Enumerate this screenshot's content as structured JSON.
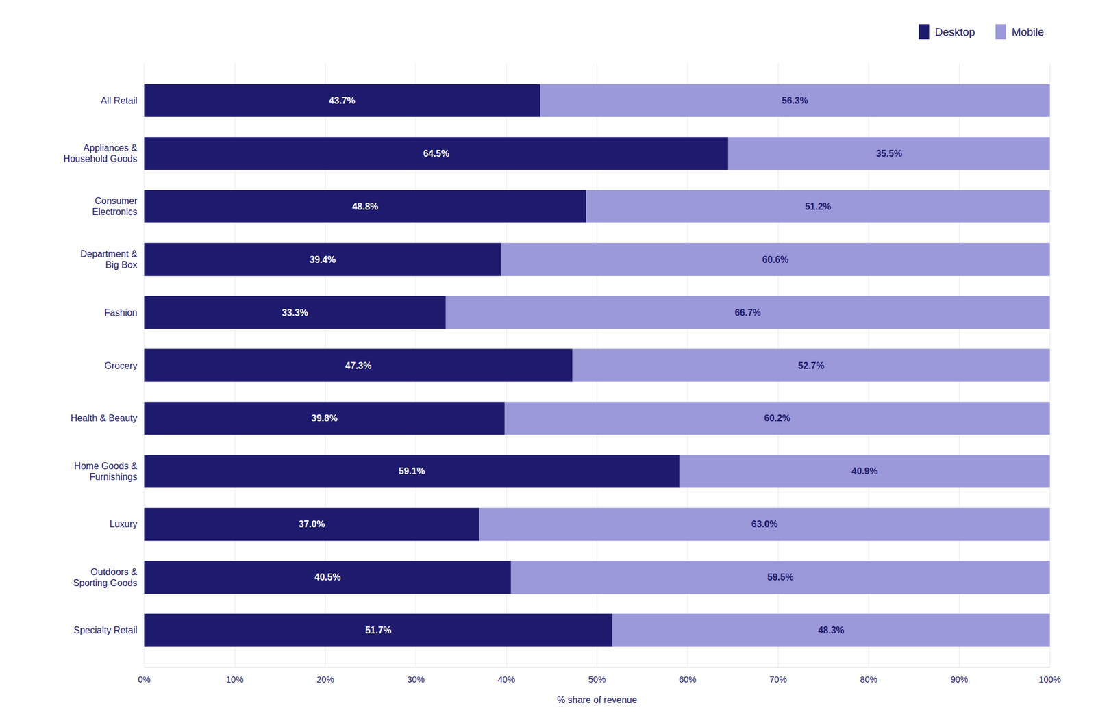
{
  "chart_data": {
    "type": "bar",
    "orientation": "horizontal",
    "stacked": true,
    "data_labels": true,
    "grid": true,
    "legend": "top-right",
    "x_label": "% share of revenue",
    "categories": [
      "All Retail",
      "Appliances &\nHousehold Goods",
      "Consumer\nElectronics",
      "Department &\nBig Box",
      "Fashion",
      "Grocery",
      "Health & Beauty",
      "Home Goods &\nFurnishings",
      "Luxury",
      "Outdoors &\nSporting Goods",
      "Specialty Retail"
    ],
    "series": [
      {
        "name": "Desktop",
        "color": "#1e1a6e",
        "values": [
          43.7,
          64.5,
          48.8,
          39.4,
          33.3,
          47.3,
          39.8,
          59.1,
          37.0,
          40.5,
          51.7
        ],
        "value_labels": [
          "43.7%",
          "64.5%",
          "48.8%",
          "39.4%",
          "33.3%",
          "47.3%",
          "39.8%",
          "59.1%",
          "37.0%",
          "40.5%",
          "51.7%"
        ]
      },
      {
        "name": "Mobile",
        "color": "#9b99d9",
        "values": [
          56.3,
          35.5,
          51.2,
          60.6,
          66.7,
          52.7,
          60.2,
          40.9,
          63.0,
          59.5,
          48.3
        ],
        "value_labels": [
          "56.3%",
          "35.5%",
          "51.2%",
          "60.6%",
          "66.7%",
          "52.7%",
          "60.2%",
          "40.9%",
          "63.0%",
          "59.5%",
          "48.3%"
        ]
      }
    ],
    "xlim": [
      0,
      100
    ],
    "xticks": [
      {
        "value": 0,
        "label": "0%"
      },
      {
        "value": 10,
        "label": "10%"
      },
      {
        "value": 20,
        "label": "20%"
      },
      {
        "value": 30,
        "label": "30%"
      },
      {
        "value": 40,
        "label": "40%"
      },
      {
        "value": 50,
        "label": "50%"
      },
      {
        "value": 60,
        "label": "60%"
      },
      {
        "value": 70,
        "label": "70%"
      },
      {
        "value": 80,
        "label": "80%"
      },
      {
        "value": 90,
        "label": "90%"
      },
      {
        "value": 100,
        "label": "100%"
      }
    ]
  }
}
